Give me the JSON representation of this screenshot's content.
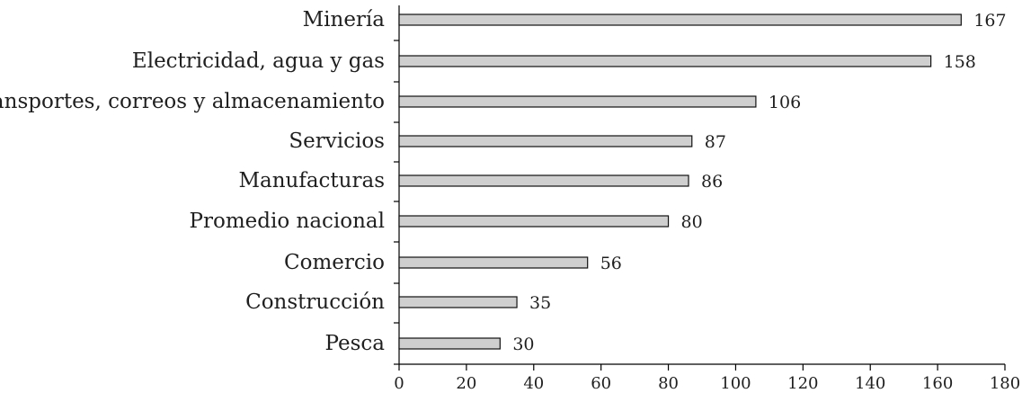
{
  "chart_data": {
    "type": "bar",
    "orientation": "horizontal",
    "categories": [
      "Minería",
      "Electricidad, agua y gas",
      "Transportes, correos y almacenamiento",
      "Servicios",
      "Manufacturas",
      "Promedio nacional",
      "Comercio",
      "Construcción",
      "Pesca"
    ],
    "values": [
      167,
      158,
      106,
      87,
      86,
      80,
      56,
      35,
      30
    ],
    "data_labels": [
      "167",
      "158",
      "106",
      "87",
      "86",
      "80",
      "56",
      "35",
      "30"
    ],
    "xlim": [
      0,
      180
    ],
    "xticks": [
      0,
      20,
      40,
      60,
      80,
      100,
      120,
      140,
      160,
      180
    ],
    "xtick_labels": [
      "0",
      "20",
      "40",
      "60",
      "80",
      "100",
      "120",
      "140",
      "160",
      "180"
    ],
    "grid": false,
    "colors": {
      "bar_fill": "#cfcfcf",
      "bar_stroke": "#111111",
      "axis": "#000000",
      "text": "#1f1f1f"
    }
  }
}
